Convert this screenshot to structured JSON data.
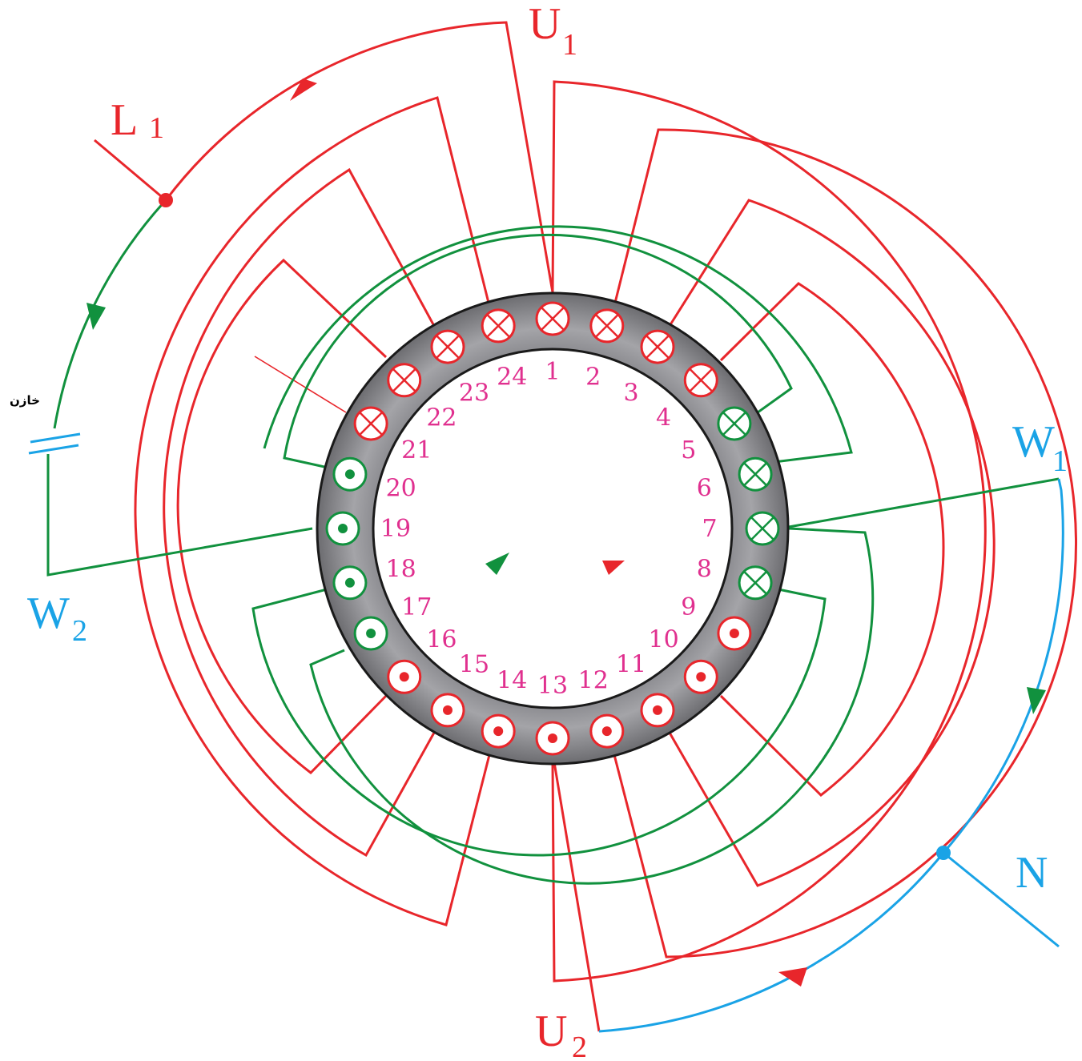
{
  "colors": {
    "main_winding": "#e8262b",
    "aux_winding": "#11913e",
    "neutral_line": "#1aa3e6",
    "slot_number": "#e0308f",
    "core_fill": "#8c8c90",
    "core_edge": "#1a1a1a"
  },
  "terminals": {
    "l1": {
      "main": "L",
      "sub": "1"
    },
    "u1": {
      "main": "U",
      "sub": "1"
    },
    "u2": {
      "main": "U",
      "sub": "2"
    },
    "w1": {
      "main": "W",
      "sub": "1"
    },
    "w2": {
      "main": "W",
      "sub": "2"
    },
    "n": {
      "main": "N"
    }
  },
  "capacitor_label": "خازن",
  "slots": [
    {
      "number": "1",
      "symbol": "cross",
      "winding": "main"
    },
    {
      "number": "2",
      "symbol": "cross",
      "winding": "main"
    },
    {
      "number": "3",
      "symbol": "cross",
      "winding": "main"
    },
    {
      "number": "4",
      "symbol": "cross",
      "winding": "main"
    },
    {
      "number": "5",
      "symbol": "cross",
      "winding": "aux"
    },
    {
      "number": "6",
      "symbol": "cross",
      "winding": "aux"
    },
    {
      "number": "7",
      "symbol": "cross",
      "winding": "aux"
    },
    {
      "number": "8",
      "symbol": "cross",
      "winding": "aux"
    },
    {
      "number": "9",
      "symbol": "dot",
      "winding": "main"
    },
    {
      "number": "10",
      "symbol": "dot",
      "winding": "main"
    },
    {
      "number": "11",
      "symbol": "dot",
      "winding": "main"
    },
    {
      "number": "12",
      "symbol": "dot",
      "winding": "main"
    },
    {
      "number": "13",
      "symbol": "dot",
      "winding": "main"
    },
    {
      "number": "14",
      "symbol": "dot",
      "winding": "main"
    },
    {
      "number": "15",
      "symbol": "dot",
      "winding": "main"
    },
    {
      "number": "16",
      "symbol": "dot",
      "winding": "main"
    },
    {
      "number": "17",
      "symbol": "dot",
      "winding": "aux"
    },
    {
      "number": "18",
      "symbol": "dot",
      "winding": "aux"
    },
    {
      "number": "19",
      "symbol": "dot",
      "winding": "aux"
    },
    {
      "number": "20",
      "symbol": "dot",
      "winding": "aux"
    },
    {
      "number": "21",
      "symbol": "cross",
      "winding": "main"
    },
    {
      "number": "22",
      "symbol": "cross",
      "winding": "main"
    },
    {
      "number": "23",
      "symbol": "cross",
      "winding": "main"
    },
    {
      "number": "24",
      "symbol": "cross",
      "winding": "main"
    }
  ]
}
